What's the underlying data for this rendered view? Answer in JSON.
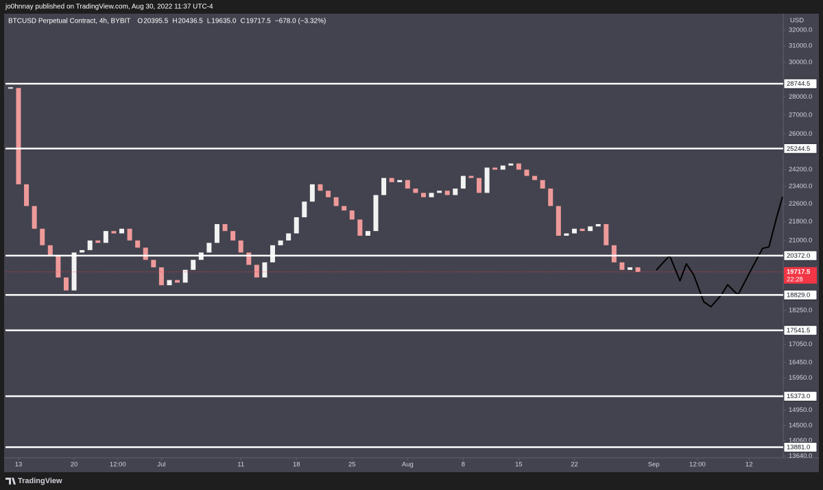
{
  "header": {
    "publisher": "jo0hnnay published on TradingView.com, Aug 30, 2022 11:37 UTC-4"
  },
  "footer": {
    "brand": "TradingView"
  },
  "chart_data": {
    "type": "candlestick",
    "title": "BTCUSD Perpetual Contract, 4h, BYBIT",
    "ohlc_labels": [
      "O",
      "H",
      "L",
      "C"
    ],
    "ohlc": [
      20395.5,
      20436.5,
      19635.0,
      19717.5
    ],
    "ohlc_value_labels": [
      "20395.5",
      "20436.5",
      "19635.0",
      "19717.5"
    ],
    "change": {
      "value": -678.0,
      "label": "−678.0 (−3.32%)"
    },
    "currency": "USD",
    "log_scale": true,
    "up_color": "#f2f2f2",
    "down_color": "#ef9a9a",
    "x": [
      -1,
      0,
      1,
      2,
      3,
      4,
      5,
      6,
      7,
      8,
      9,
      10,
      11,
      12,
      13,
      14,
      15,
      16,
      17,
      18,
      19,
      20,
      21,
      22,
      23,
      24,
      25,
      26,
      27,
      28,
      29,
      30,
      31,
      32,
      33,
      34,
      35,
      36,
      37,
      38,
      39,
      40,
      41,
      42,
      43,
      44,
      45,
      46,
      47,
      48,
      49,
      50,
      51,
      52,
      53,
      54,
      55,
      56,
      57,
      58,
      59,
      60,
      61,
      62,
      63,
      64,
      65,
      66,
      67,
      68,
      69,
      70,
      71,
      72,
      73,
      74,
      75,
      76,
      77,
      78
    ],
    "values": [
      28500,
      23500,
      22500,
      21500,
      20800,
      20400,
      19500,
      19000,
      20500,
      20600,
      21000,
      20900,
      21400,
      21300,
      21500,
      21000,
      20700,
      20200,
      19900,
      19200,
      19400,
      19300,
      19800,
      20200,
      20500,
      20900,
      21700,
      21400,
      21000,
      20500,
      20000,
      19500,
      20100,
      20800,
      21000,
      21300,
      22000,
      22700,
      23500,
      23200,
      22900,
      22500,
      22300,
      21900,
      21200,
      21400,
      23000,
      23800,
      23600,
      23700,
      23300,
      23100,
      22900,
      23100,
      23200,
      23000,
      23300,
      23900,
      23800,
      23100,
      24300,
      24200,
      24400,
      24500,
      24200,
      23900,
      23700,
      23300,
      22500,
      21200,
      21300,
      21500,
      21400,
      21600,
      21700,
      20800,
      20100,
      19800,
      19900,
      19717.5
    ],
    "projection": {
      "color": "#000000",
      "x": [
        80.3,
        82,
        83.3,
        84.1,
        85,
        86.3,
        87.2,
        88.5,
        89.3,
        90.6,
        92.4,
        93.7,
        94.5,
        95.4,
        96.2
      ],
      "values": [
        19790,
        20370,
        19370,
        20040,
        19620,
        18570,
        18390,
        18830,
        19220,
        18830,
        19890,
        20670,
        20730,
        21900,
        22920
      ]
    },
    "levels": [
      {
        "value": 28744.5,
        "label": "28744.5"
      },
      {
        "value": 25244.5,
        "label": "25244.5"
      },
      {
        "value": 20372.0,
        "label": "20372.0"
      },
      {
        "value": 18829.0,
        "label": "18829.0"
      },
      {
        "value": 17541.5,
        "label": "17541.5"
      },
      {
        "value": 15373.0,
        "label": "15373.0"
      },
      {
        "value": 13881.0,
        "label": "13881.0"
      }
    ],
    "last_price": {
      "value": 19717.5,
      "label": "19717.5",
      "countdown": "22:28",
      "color": "#f23645"
    },
    "xlim": [
      -1.64,
      96.3
    ],
    "ylim": [
      13590,
      33070
    ],
    "yticks": [
      {
        "value": 32000,
        "label": "32000.0"
      },
      {
        "value": 31000,
        "label": "31000.0"
      },
      {
        "value": 30000,
        "label": "30000.0"
      },
      {
        "value": 28000,
        "label": "28000.0"
      },
      {
        "value": 27000,
        "label": "27000.0"
      },
      {
        "value": 26000,
        "label": "26000.0"
      },
      {
        "value": 24200,
        "label": "24200.0"
      },
      {
        "value": 23400,
        "label": "23400.0"
      },
      {
        "value": 22600,
        "label": "22600.0"
      },
      {
        "value": 21800,
        "label": "21800.0"
      },
      {
        "value": 21000,
        "label": "21000.0"
      },
      {
        "value": 18250,
        "label": "18250.0"
      },
      {
        "value": 17050,
        "label": "17050.0"
      },
      {
        "value": 16450,
        "label": "16450.0"
      },
      {
        "value": 15950,
        "label": "15950.0"
      },
      {
        "value": 14950,
        "label": "14950.0"
      },
      {
        "value": 14500,
        "label": "14500.0"
      },
      {
        "value": 14060,
        "label": "14060.0"
      },
      {
        "value": 13640,
        "label": "13640.0"
      }
    ],
    "xticks": [
      {
        "value": 0,
        "label": "13"
      },
      {
        "value": 7,
        "label": "20"
      },
      {
        "value": 12.5,
        "label": "12:00"
      },
      {
        "value": 18,
        "label": "Jul"
      },
      {
        "value": 28,
        "label": "11"
      },
      {
        "value": 35,
        "label": "18"
      },
      {
        "value": 42,
        "label": "25"
      },
      {
        "value": 49,
        "label": "Aug"
      },
      {
        "value": 56,
        "label": "8"
      },
      {
        "value": 63,
        "label": "15"
      },
      {
        "value": 70,
        "label": "22"
      },
      {
        "value": 80,
        "label": "Sep"
      },
      {
        "value": 85.5,
        "label": "12:00"
      },
      {
        "value": 92,
        "label": "12"
      }
    ]
  }
}
